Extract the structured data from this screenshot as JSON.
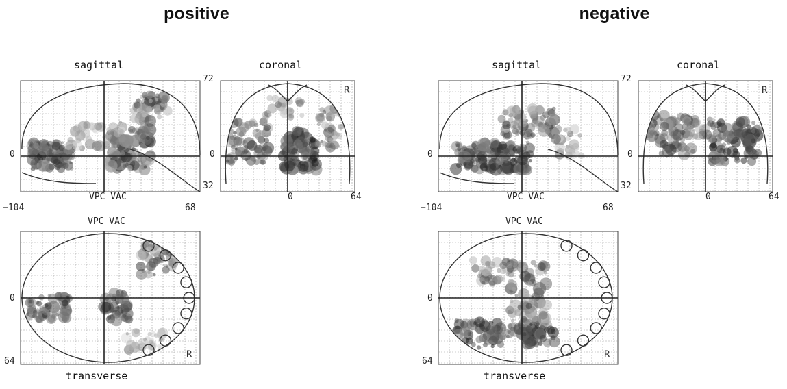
{
  "panels": [
    {
      "title": "positive",
      "sagittal": {
        "label": "sagittal",
        "axis_left": "0",
        "x_min": "−104",
        "x_max": "68",
        "ref": "VPC VAC"
      },
      "coronal": {
        "label": "coronal",
        "top": "72",
        "left": "0",
        "bottom": "32",
        "x_mid": "0",
        "x_right": "64",
        "side": "R"
      },
      "transverse": {
        "label": "transverse",
        "ref": "VPC VAC",
        "left": "0",
        "bottom": "64",
        "side": "R"
      }
    },
    {
      "title": "negative",
      "sagittal": {
        "label": "sagittal",
        "axis_left": "0",
        "x_min": "−104",
        "x_max": "68",
        "ref": "VPC VAC"
      },
      "coronal": {
        "label": "coronal",
        "top": "72",
        "left": "0",
        "bottom": "32",
        "x_mid": "0",
        "x_right": "64",
        "side": "R"
      },
      "transverse": {
        "label": "transverse",
        "ref": "VPC VAC",
        "left": "0",
        "bottom": "64",
        "side": "R"
      }
    }
  ]
}
